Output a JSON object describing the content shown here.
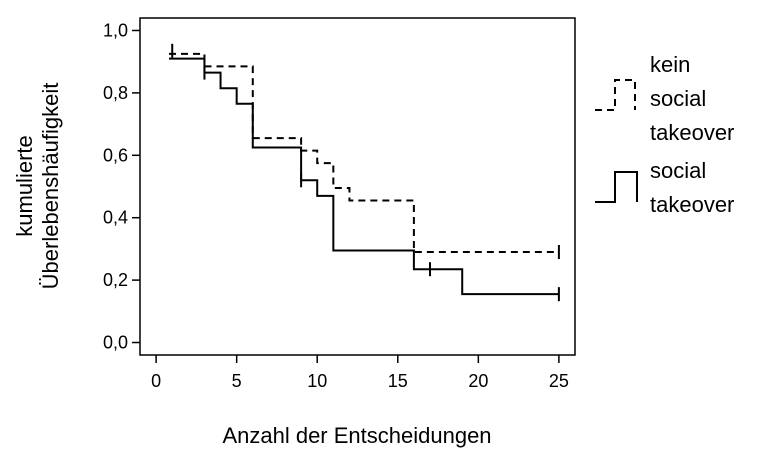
{
  "chart_data": {
    "type": "line",
    "title": "",
    "xlabel": "Anzahl der Entscheidungen",
    "ylabel_lines": [
      "kumulierte",
      "Überlebenshäufigkeit"
    ],
    "xlim": [
      -1,
      26
    ],
    "ylim": [
      -0.04,
      1.04
    ],
    "x_ticks": [
      0,
      5,
      10,
      15,
      20,
      25
    ],
    "x_tick_labels": [
      "0",
      "5",
      "10",
      "15",
      "20",
      "25"
    ],
    "y_ticks": [
      0.0,
      0.2,
      0.4,
      0.6,
      0.8,
      1.0
    ],
    "y_tick_labels": [
      "0,0",
      "0,2",
      "0,4",
      "0,6",
      "0,8",
      "1,0"
    ],
    "step_style": "post",
    "legend_position": "right",
    "series": [
      {
        "name": "kein social takeover",
        "line_style": "dashed",
        "color": "#000000",
        "x": [
          0.8,
          3,
          6,
          9,
          10,
          11,
          12,
          16,
          25
        ],
        "y": [
          0.925,
          0.885,
          0.655,
          0.615,
          0.575,
          0.495,
          0.455,
          0.29,
          0.29
        ],
        "censored": [
          {
            "x": 1,
            "y": 0.935
          },
          {
            "x": 25,
            "y": 0.29
          }
        ]
      },
      {
        "name": "social takeover",
        "line_style": "solid",
        "color": "#000000",
        "x": [
          0.8,
          3,
          4,
          5,
          6,
          9,
          10,
          11,
          16,
          19,
          25
        ],
        "y": [
          0.91,
          0.865,
          0.815,
          0.765,
          0.625,
          0.52,
          0.47,
          0.295,
          0.235,
          0.155,
          0.155
        ],
        "censored": [
          {
            "x": 3,
            "y": 0.865
          },
          {
            "x": 9,
            "y": 0.52
          },
          {
            "x": 17,
            "y": 0.235
          },
          {
            "x": 25,
            "y": 0.155
          }
        ]
      }
    ],
    "legend": [
      {
        "label_lines": [
          "kein",
          "social",
          "takeover"
        ],
        "line_style": "dashed"
      },
      {
        "label_lines": [
          "social",
          "takeover"
        ],
        "line_style": "solid"
      }
    ]
  }
}
